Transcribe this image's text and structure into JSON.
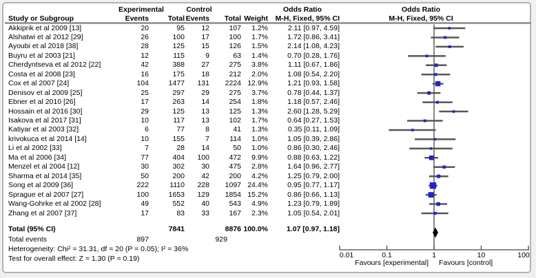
{
  "header": {
    "study": "Study or Subgroup",
    "experimental": "Experimental",
    "control": "Control",
    "events": "Events",
    "total": "Total",
    "weight": "Weight",
    "odds_ratio": "Odds Ratio",
    "method": "M-H, Fixed, 95% CI"
  },
  "colors": {
    "square": "#2222cf",
    "ci_line": "#565656",
    "diamond": "#000000",
    "axis": "#444444",
    "separator": "#8a8a8a",
    "text": "#000000",
    "panel_border": "#b2b2b2",
    "panel_bg": "#ffffff"
  },
  "chart_data": {
    "type": "forest",
    "x_axis": {
      "scale": "log10",
      "ticks": [
        0.01,
        0.1,
        1,
        10,
        100
      ],
      "labels": [
        "0.01",
        "0.1",
        "1",
        "10",
        "100"
      ],
      "range": [
        0.01,
        100
      ]
    },
    "favours": {
      "left": "Favours [experimental]",
      "right": "Favours [control]"
    },
    "studies": [
      {
        "name": "Akkiprik et al 2009 [13]",
        "exp_events": 20,
        "exp_total": 95,
        "ctrl_events": 12,
        "ctrl_total": 107,
        "weight": "1.2%",
        "weight_pct": 1.2,
        "or": 2.11,
        "ci_low": 0.97,
        "ci_high": 4.59,
        "or_text": "2.11 [0.97, 4.59]"
      },
      {
        "name": "Alshatwi et al 2012 [29]",
        "exp_events": 26,
        "exp_total": 100,
        "ctrl_events": 17,
        "ctrl_total": 100,
        "weight": "1.7%",
        "weight_pct": 1.7,
        "or": 1.72,
        "ci_low": 0.86,
        "ci_high": 3.41,
        "or_text": "1.72 [0.86, 3.41]"
      },
      {
        "name": "Ayoubi et al 2018 [38]",
        "exp_events": 28,
        "exp_total": 125,
        "ctrl_events": 15,
        "ctrl_total": 126,
        "weight": "1.5%",
        "weight_pct": 1.5,
        "or": 2.14,
        "ci_low": 1.08,
        "ci_high": 4.23,
        "or_text": "2.14 [1.08, 4.23]"
      },
      {
        "name": "Buyru et al 2003 [21]",
        "exp_events": 12,
        "exp_total": 115,
        "ctrl_events": 9,
        "ctrl_total": 63,
        "weight": "1.4%",
        "weight_pct": 1.4,
        "or": 0.7,
        "ci_low": 0.28,
        "ci_high": 1.76,
        "or_text": "0.70 [0.28, 1.76]"
      },
      {
        "name": "Cherdyntseva et al 2012 [22]",
        "exp_events": 42,
        "exp_total": 388,
        "ctrl_events": 27,
        "ctrl_total": 275,
        "weight": "3.8%",
        "weight_pct": 3.8,
        "or": 1.11,
        "ci_low": 0.67,
        "ci_high": 1.86,
        "or_text": "1.11 [0.67, 1.86]"
      },
      {
        "name": "Costa et al 2008 [23]",
        "exp_events": 16,
        "exp_total": 175,
        "ctrl_events": 18,
        "ctrl_total": 212,
        "weight": "2.0%",
        "weight_pct": 2.0,
        "or": 1.08,
        "ci_low": 0.54,
        "ci_high": 2.2,
        "or_text": "1.08 [0.54, 2.20]"
      },
      {
        "name": "Cox et al 2007 [24]",
        "exp_events": 104,
        "exp_total": 1477,
        "ctrl_events": 131,
        "ctrl_total": 2224,
        "weight": "12.9%",
        "weight_pct": 12.9,
        "or": 1.21,
        "ci_low": 0.93,
        "ci_high": 1.58,
        "or_text": "1.21 [0.93, 1.58]"
      },
      {
        "name": "Denisov et al 2009 [25]",
        "exp_events": 25,
        "exp_total": 297,
        "ctrl_events": 29,
        "ctrl_total": 275,
        "weight": "3.7%",
        "weight_pct": 3.7,
        "or": 0.78,
        "ci_low": 0.44,
        "ci_high": 1.37,
        "or_text": "0.78 [0.44, 1.37]"
      },
      {
        "name": "Ebner et al 2010 [26]",
        "exp_events": 17,
        "exp_total": 263,
        "ctrl_events": 14,
        "ctrl_total": 254,
        "weight": "1.8%",
        "weight_pct": 1.8,
        "or": 1.18,
        "ci_low": 0.57,
        "ci_high": 2.46,
        "or_text": "1.18 [0.57, 2.46]"
      },
      {
        "name": "Hossain et al 2016 [30]",
        "exp_events": 29,
        "exp_total": 125,
        "ctrl_events": 13,
        "ctrl_total": 125,
        "weight": "1.3%",
        "weight_pct": 1.3,
        "or": 2.6,
        "ci_low": 1.28,
        "ci_high": 5.29,
        "or_text": "2.60 [1.28, 5.29]"
      },
      {
        "name": "Isakova et al 2017 [31]",
        "exp_events": 10,
        "exp_total": 117,
        "ctrl_events": 13,
        "ctrl_total": 102,
        "weight": "1.7%",
        "weight_pct": 1.7,
        "or": 0.64,
        "ci_low": 0.27,
        "ci_high": 1.53,
        "or_text": "0.64 [0.27, 1.53]"
      },
      {
        "name": "Katiyar et al 2003 [32]",
        "exp_events": 6,
        "exp_total": 77,
        "ctrl_events": 8,
        "ctrl_total": 41,
        "weight": "1.3%",
        "weight_pct": 1.3,
        "or": 0.35,
        "ci_low": 0.11,
        "ci_high": 1.09,
        "or_text": "0.35 [0.11, 1.09]"
      },
      {
        "name": "krivokuca et al 2014 [14]",
        "exp_events": 10,
        "exp_total": 155,
        "ctrl_events": 7,
        "ctrl_total": 114,
        "weight": "1.0%",
        "weight_pct": 1.0,
        "or": 1.05,
        "ci_low": 0.39,
        "ci_high": 2.86,
        "or_text": "1.05 [0.39, 2.86]"
      },
      {
        "name": "Li et al 2002 [33]",
        "exp_events": 7,
        "exp_total": 28,
        "ctrl_events": 14,
        "ctrl_total": 50,
        "weight": "1.0%",
        "weight_pct": 1.0,
        "or": 0.86,
        "ci_low": 0.3,
        "ci_high": 2.46,
        "or_text": "0.86 [0.30, 2.46]"
      },
      {
        "name": "Ma et al 2006 [34]",
        "exp_events": 77,
        "exp_total": 404,
        "ctrl_events": 100,
        "ctrl_total": 472,
        "weight": "9.9%",
        "weight_pct": 9.9,
        "or": 0.88,
        "ci_low": 0.63,
        "ci_high": 1.22,
        "or_text": "0.88 [0.63, 1.22]"
      },
      {
        "name": "Menzel et al 2004 [12]",
        "exp_events": 30,
        "exp_total": 302,
        "ctrl_events": 30,
        "ctrl_total": 475,
        "weight": "2.8%",
        "weight_pct": 2.8,
        "or": 1.64,
        "ci_low": 0.96,
        "ci_high": 2.77,
        "or_text": "1.64 [0.96, 2.77]"
      },
      {
        "name": "Sharma et al 2014 [35]",
        "exp_events": 50,
        "exp_total": 200,
        "ctrl_events": 42,
        "ctrl_total": 200,
        "weight": "4.2%",
        "weight_pct": 4.2,
        "or": 1.25,
        "ci_low": 0.79,
        "ci_high": 2.0,
        "or_text": "1.25 [0.79, 2.00]"
      },
      {
        "name": "Song et al 2009 [36]",
        "exp_events": 222,
        "exp_total": 1110,
        "ctrl_events": 228,
        "ctrl_total": 1097,
        "weight": "24.4%",
        "weight_pct": 24.4,
        "or": 0.95,
        "ci_low": 0.77,
        "ci_high": 1.17,
        "or_text": "0.95 [0.77, 1.17]"
      },
      {
        "name": "Sprague et al 2007 [27]",
        "exp_events": 100,
        "exp_total": 1653,
        "ctrl_events": 129,
        "ctrl_total": 1854,
        "weight": "15.2%",
        "weight_pct": 15.2,
        "or": 0.86,
        "ci_low": 0.66,
        "ci_high": 1.13,
        "or_text": "0.86 [0.66, 1.13]"
      },
      {
        "name": "Wang-Gohrke et al 2002 [28]",
        "exp_events": 49,
        "exp_total": 552,
        "ctrl_events": 40,
        "ctrl_total": 543,
        "weight": "4.9%",
        "weight_pct": 4.9,
        "or": 1.23,
        "ci_low": 0.79,
        "ci_high": 1.89,
        "or_text": "1.23 [0.79, 1.89]"
      },
      {
        "name": "Zhang et al 2007 [37]",
        "exp_events": 17,
        "exp_total": 83,
        "ctrl_events": 33,
        "ctrl_total": 167,
        "weight": "2.3%",
        "weight_pct": 2.3,
        "or": 1.05,
        "ci_low": 0.54,
        "ci_high": 2.01,
        "or_text": "1.05 [0.54, 2.01]"
      }
    ],
    "total": {
      "label": "Total (95% CI)",
      "exp_total": 7841,
      "ctrl_total": 8876,
      "weight": "100.0%",
      "or": 1.07,
      "ci_low": 0.97,
      "ci_high": 1.18,
      "or_text": "1.07 [0.97, 1.18]"
    },
    "total_events": {
      "label": "Total events",
      "exp": 897,
      "ctrl": 929
    },
    "footnotes": {
      "heterogeneity": "Heterogeneity: Chi² = 31.31, df = 20 (P = 0.05); I² = 36%",
      "overall_effect": "Test for overall effect: Z = 1.30 (P = 0.19)"
    }
  }
}
